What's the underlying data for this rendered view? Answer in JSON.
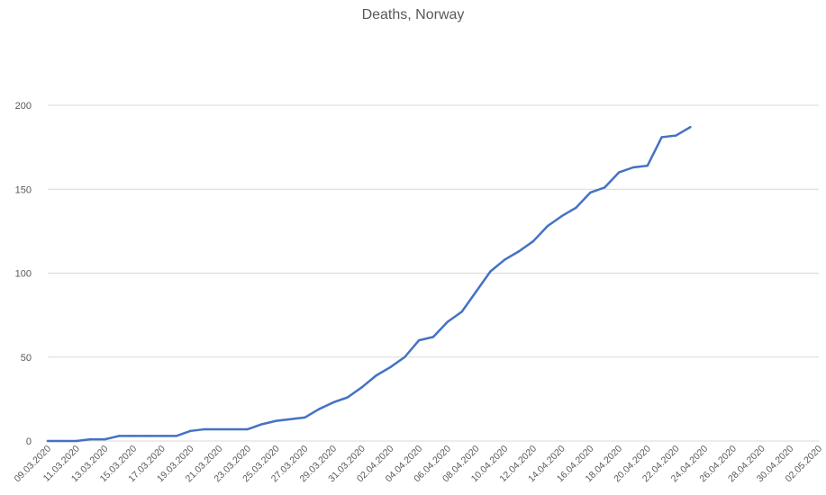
{
  "chart_data": {
    "type": "line",
    "title": "Deaths, Norway",
    "xlabel": "",
    "ylabel": "",
    "ylim": [
      0,
      200
    ],
    "yticks": [
      0,
      50,
      100,
      150,
      200
    ],
    "grid": true,
    "legend": "none",
    "colors": {
      "line": "#4472C4",
      "grid": "#d9d9d9",
      "text": "#595959"
    },
    "x_tick_labels": [
      "09.03.2020",
      "11.03.2020",
      "13.03.2020",
      "15.03.2020",
      "17.03.2020",
      "19.03.2020",
      "21.03.2020",
      "23.03.2020",
      "25.03.2020",
      "27.03.2020",
      "29.03.2020",
      "31.03.2020",
      "02.04.2020",
      "04.04.2020",
      "06.04.2020",
      "08.04.2020",
      "10.04.2020",
      "12.04.2020",
      "14.04.2020",
      "16.04.2020",
      "18.04.2020",
      "20.04.2020",
      "22.04.2020",
      "24.04.2020",
      "26.04.2020",
      "28.04.2020",
      "30.04.2020",
      "02.05.2020"
    ],
    "x_dates": [
      "09.03.2020",
      "10.03.2020",
      "11.03.2020",
      "12.03.2020",
      "13.03.2020",
      "14.03.2020",
      "15.03.2020",
      "16.03.2020",
      "17.03.2020",
      "18.03.2020",
      "19.03.2020",
      "20.03.2020",
      "21.03.2020",
      "22.03.2020",
      "23.03.2020",
      "24.03.2020",
      "25.03.2020",
      "26.03.2020",
      "27.03.2020",
      "28.03.2020",
      "29.03.2020",
      "30.03.2020",
      "31.03.2020",
      "01.04.2020",
      "02.04.2020",
      "03.04.2020",
      "04.04.2020",
      "05.04.2020",
      "06.04.2020",
      "07.04.2020",
      "08.04.2020",
      "09.04.2020",
      "10.04.2020",
      "11.04.2020",
      "12.04.2020",
      "13.04.2020",
      "14.04.2020",
      "15.04.2020",
      "16.04.2020",
      "17.04.2020",
      "18.04.2020",
      "19.04.2020",
      "20.04.2020",
      "21.04.2020",
      "22.04.2020",
      "23.04.2020",
      "24.04.2020",
      "25.04.2020",
      "26.04.2020",
      "27.04.2020",
      "28.04.2020",
      "29.04.2020",
      "30.04.2020",
      "01.05.2020",
      "02.05.2020"
    ],
    "series": [
      {
        "values": [
          0,
          0,
          0,
          1,
          1,
          3,
          3,
          3,
          3,
          3,
          6,
          7,
          7,
          7,
          7,
          10,
          12,
          13,
          14,
          19,
          23,
          26,
          32,
          39,
          44,
          50,
          60,
          62,
          71,
          77,
          89,
          101,
          108,
          113,
          119,
          128,
          134,
          139,
          148,
          151,
          160,
          163,
          164,
          181,
          182,
          187
        ]
      }
    ]
  }
}
